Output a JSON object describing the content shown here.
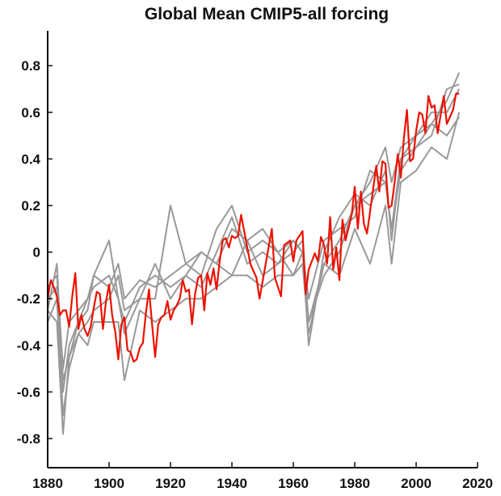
{
  "chart_data": {
    "type": "line",
    "title": "Global Mean CMIP5-all forcing",
    "xlabel": "",
    "ylabel": "",
    "xlim": [
      1880,
      2020
    ],
    "ylim": [
      -0.925,
      0.95
    ],
    "xticks": [
      1880,
      1900,
      1920,
      1940,
      1960,
      1980,
      2000,
      2020
    ],
    "xtick_labels": [
      "1880",
      "1900",
      "1920",
      "1940",
      "1960",
      "1980",
      "2000",
      "2020"
    ],
    "yticks": [
      -0.8,
      -0.6,
      -0.4,
      -0.2,
      0,
      0.2,
      0.4,
      0.6,
      0.8
    ],
    "ytick_labels": [
      "-0.8",
      "-0.6",
      "-0.4",
      "-0.2",
      "0",
      "0.2",
      "0.4",
      "0.6",
      "0.8"
    ],
    "grid": false,
    "colors": {
      "ensemble": "#999999",
      "highlight": "#ee1100"
    },
    "ensemble_x": [
      1880,
      1883,
      1885,
      1887,
      1890,
      1893,
      1895,
      1900,
      1903,
      1905,
      1910,
      1915,
      1920,
      1925,
      1930,
      1935,
      1940,
      1945,
      1950,
      1955,
      1960,
      1963,
      1965,
      1970,
      1975,
      1980,
      1985,
      1990,
      1992,
      1995,
      2000,
      2005,
      2010,
      2014
    ],
    "ensemble": [
      {
        "values": [
          -0.25,
          -0.05,
          -0.55,
          -0.45,
          -0.3,
          -0.2,
          -0.1,
          -0.15,
          -0.05,
          -0.2,
          -0.12,
          -0.15,
          -0.1,
          -0.05,
          0.0,
          -0.05,
          0.1,
          0.05,
          -0.1,
          -0.05,
          0.0,
          0.05,
          -0.3,
          -0.05,
          0.05,
          0.2,
          0.3,
          0.45,
          0.3,
          0.45,
          0.5,
          0.55,
          0.65,
          0.77
        ]
      },
      {
        "values": [
          -0.3,
          -0.2,
          -0.7,
          -0.5,
          -0.35,
          -0.3,
          -0.25,
          -0.2,
          -0.1,
          -0.25,
          -0.2,
          -0.2,
          0.2,
          -0.05,
          -0.1,
          0.1,
          0.2,
          0.0,
          0.05,
          0.0,
          -0.1,
          0.0,
          -0.4,
          0.0,
          0.15,
          0.25,
          0.2,
          0.35,
          0.05,
          0.4,
          0.45,
          0.5,
          0.7,
          0.72
        ]
      },
      {
        "values": [
          -0.2,
          -0.15,
          -0.6,
          -0.4,
          -0.3,
          -0.25,
          -0.1,
          0.05,
          -0.2,
          -0.3,
          -0.15,
          -0.1,
          -0.15,
          -0.1,
          0.0,
          -0.05,
          -0.1,
          0.05,
          0.1,
          0.0,
          0.05,
          0.0,
          -0.3,
          -0.1,
          0.0,
          0.2,
          0.25,
          0.3,
          0.1,
          0.35,
          0.45,
          0.55,
          0.5,
          0.58
        ]
      },
      {
        "values": [
          -0.25,
          -0.3,
          -0.78,
          -0.45,
          -0.35,
          -0.4,
          -0.3,
          -0.3,
          -0.3,
          -0.55,
          -0.25,
          -0.3,
          -0.25,
          -0.2,
          -0.2,
          -0.15,
          -0.1,
          -0.1,
          -0.15,
          -0.1,
          -0.1,
          -0.05,
          -0.35,
          -0.05,
          -0.1,
          0.1,
          -0.05,
          0.2,
          -0.05,
          0.3,
          0.35,
          0.45,
          0.4,
          0.6
        ]
      },
      {
        "values": [
          -0.15,
          -0.1,
          -0.5,
          -0.3,
          -0.25,
          -0.2,
          -0.15,
          -0.1,
          -0.2,
          -0.35,
          -0.2,
          -0.05,
          -0.2,
          -0.1,
          -0.15,
          0.0,
          0.15,
          -0.05,
          0.0,
          -0.05,
          0.05,
          0.0,
          -0.2,
          0.05,
          0.1,
          0.15,
          0.35,
          0.3,
          0.1,
          0.4,
          0.5,
          0.6,
          0.6,
          0.7
        ]
      }
    ],
    "highlight": {
      "x": [
        1880,
        1881,
        1882,
        1883,
        1884,
        1885,
        1886,
        1887,
        1888,
        1889,
        1890,
        1891,
        1892,
        1893,
        1894,
        1895,
        1896,
        1897,
        1898,
        1899,
        1900,
        1901,
        1902,
        1903,
        1904,
        1905,
        1906,
        1907,
        1908,
        1909,
        1910,
        1911,
        1912,
        1913,
        1914,
        1915,
        1916,
        1917,
        1918,
        1919,
        1920,
        1921,
        1922,
        1923,
        1924,
        1925,
        1926,
        1927,
        1928,
        1929,
        1930,
        1931,
        1932,
        1933,
        1934,
        1935,
        1936,
        1937,
        1938,
        1939,
        1940,
        1941,
        1942,
        1943,
        1946,
        1948,
        1949,
        1951,
        1953,
        1954,
        1956,
        1957,
        1959,
        1960,
        1961,
        1963,
        1964,
        1965,
        1967,
        1968,
        1969,
        1970,
        1971,
        1972,
        1973,
        1974,
        1975,
        1976,
        1977,
        1979,
        1980,
        1981,
        1982,
        1983,
        1984,
        1986,
        1987,
        1988,
        1989,
        1990,
        1991,
        1992,
        1993,
        1994,
        1995,
        1996,
        1997,
        1998,
        1999,
        2000,
        2001,
        2002,
        2003,
        2004,
        2005,
        2006,
        2007,
        2009,
        2010,
        2012,
        2013,
        2014
      ],
      "values": [
        -0.2,
        -0.12,
        -0.15,
        -0.19,
        -0.27,
        -0.25,
        -0.25,
        -0.32,
        -0.19,
        -0.09,
        -0.33,
        -0.27,
        -0.33,
        -0.36,
        -0.32,
        -0.24,
        -0.17,
        -0.18,
        -0.33,
        -0.21,
        -0.14,
        -0.27,
        -0.34,
        -0.46,
        -0.31,
        -0.28,
        -0.42,
        -0.43,
        -0.47,
        -0.46,
        -0.41,
        -0.39,
        -0.26,
        -0.16,
        -0.31,
        -0.45,
        -0.31,
        -0.28,
        -0.27,
        -0.21,
        -0.29,
        -0.25,
        -0.23,
        -0.2,
        -0.12,
        -0.17,
        -0.16,
        -0.31,
        -0.18,
        -0.11,
        -0.1,
        -0.25,
        -0.09,
        -0.14,
        -0.07,
        -0.16,
        -0.04,
        0.05,
        0.06,
        0.02,
        0.07,
        0.06,
        0.07,
        0.16,
        -0.05,
        -0.11,
        -0.2,
        -0.05,
        0.1,
        -0.11,
        -0.19,
        0.03,
        0.05,
        -0.04,
        0.05,
        0.09,
        -0.18,
        -0.075,
        -0.005,
        -0.04,
        0.065,
        0.03,
        -0.05,
        0.15,
        -0.075,
        0.02,
        -0.12,
        0.14,
        0.05,
        0.16,
        0.28,
        0.1,
        0.26,
        0.12,
        0.08,
        0.27,
        0.37,
        0.26,
        0.39,
        0.38,
        0.19,
        0.2,
        0.3,
        0.42,
        0.32,
        0.49,
        0.61,
        0.39,
        0.4,
        0.52,
        0.6,
        0.59,
        0.51,
        0.67,
        0.62,
        0.63,
        0.51,
        0.67,
        0.55,
        0.61,
        0.68,
        0.68
      ]
    }
  }
}
